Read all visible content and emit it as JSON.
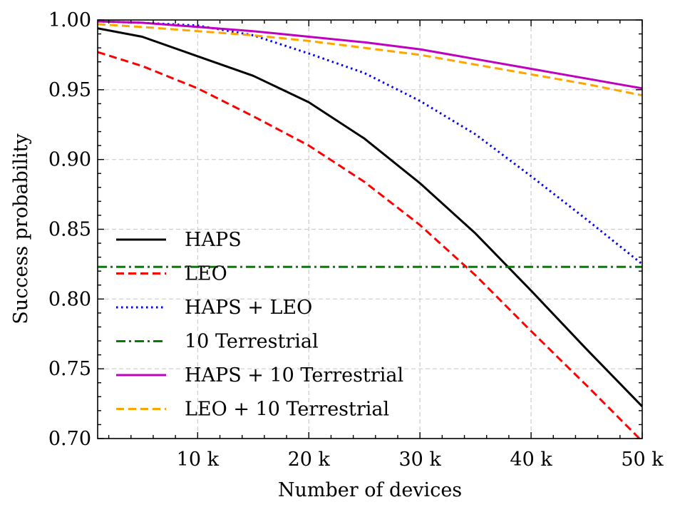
{
  "chart_data": {
    "type": "line",
    "title": "",
    "xlabel": "Number of devices",
    "ylabel": "Success probability",
    "xlim": [
      1000,
      50000
    ],
    "ylim": [
      0.7,
      1.0
    ],
    "grid": true,
    "legend_position": "center-left",
    "x_ticks": [
      {
        "value": 10000,
        "label": "10 k"
      },
      {
        "value": 20000,
        "label": "20 k"
      },
      {
        "value": 30000,
        "label": "30 k"
      },
      {
        "value": 40000,
        "label": "40 k"
      },
      {
        "value": 50000,
        "label": "50 k"
      }
    ],
    "y_ticks": [
      {
        "value": 0.7,
        "label": "0.70"
      },
      {
        "value": 0.75,
        "label": "0.75"
      },
      {
        "value": 0.8,
        "label": "0.80"
      },
      {
        "value": 0.85,
        "label": "0.85"
      },
      {
        "value": 0.9,
        "label": "0.90"
      },
      {
        "value": 0.95,
        "label": "0.95"
      },
      {
        "value": 1.0,
        "label": "1.00"
      }
    ],
    "x": [
      1000,
      5000,
      10000,
      15000,
      20000,
      25000,
      30000,
      35000,
      40000,
      45000,
      50000
    ],
    "series": [
      {
        "name": "HAPS",
        "color": "#000000",
        "dash": "solid",
        "values": [
          0.994,
          0.988,
          0.974,
          0.96,
          0.941,
          0.915,
          0.883,
          0.847,
          0.806,
          0.764,
          0.723
        ]
      },
      {
        "name": "LEO",
        "color": "#ff0000",
        "dash": "dashed",
        "values": [
          0.977,
          0.967,
          0.951,
          0.931,
          0.91,
          0.884,
          0.853,
          0.817,
          0.777,
          0.738,
          0.698
        ]
      },
      {
        "name": "HAPS + LEO",
        "color": "#0000ff",
        "dash": "dotted",
        "values": [
          0.999,
          0.998,
          0.996,
          0.989,
          0.976,
          0.962,
          0.942,
          0.918,
          0.888,
          0.857,
          0.825
        ]
      },
      {
        "name": "10 Terrestrial",
        "color": "#008000",
        "dash": "dashdot",
        "values": [
          0.823,
          0.823,
          0.823,
          0.823,
          0.823,
          0.823,
          0.823,
          0.823,
          0.823,
          0.823,
          0.823
        ]
      },
      {
        "name": "HAPS + 10 Terrestrial",
        "color": "#bf00bf",
        "dash": "solid",
        "values": [
          0.999,
          0.998,
          0.995,
          0.992,
          0.988,
          0.984,
          0.979,
          0.972,
          0.965,
          0.958,
          0.951
        ]
      },
      {
        "name": "LEO + 10 Terrestrial",
        "color": "#ffa500",
        "dash": "dashed",
        "values": [
          0.997,
          0.995,
          0.992,
          0.989,
          0.985,
          0.98,
          0.975,
          0.968,
          0.961,
          0.954,
          0.946
        ]
      }
    ]
  }
}
